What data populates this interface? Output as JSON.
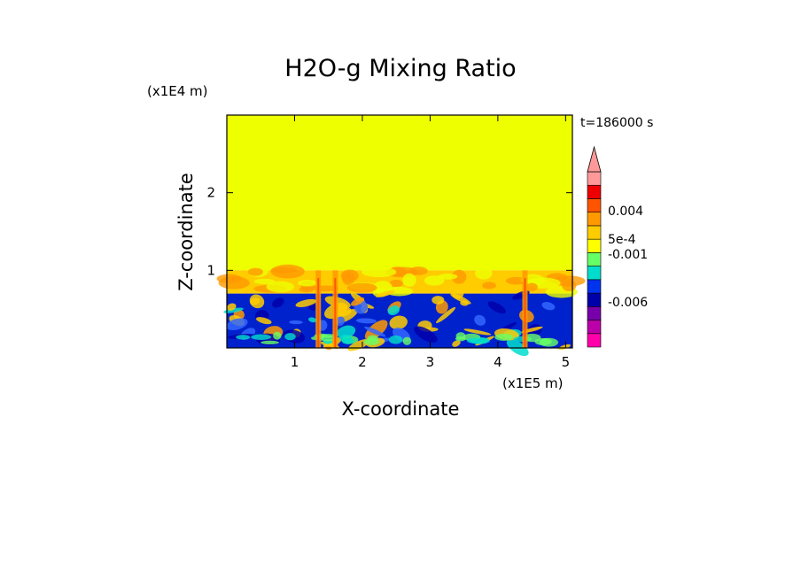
{
  "chart_data": {
    "type": "heatmap",
    "title": "H2O-g Mixing Ratio",
    "xlabel": "X-coordinate",
    "ylabel": "Z-coordinate",
    "x_scale_label": "(x1E5 m)",
    "y_scale_label": "(x1E4 m)",
    "time_label": "t=186000 s",
    "xlim": [
      0,
      5.1
    ],
    "ylim": [
      0,
      3.0
    ],
    "x_ticks": [
      1,
      2,
      3,
      4,
      5
    ],
    "y_ticks": [
      1,
      2
    ],
    "layers": [
      {
        "name": "upper",
        "z_range": [
          1.0,
          3.0
        ],
        "color": "#eeff00"
      },
      {
        "name": "transition",
        "z_range": [
          0.7,
          1.0
        ],
        "color": "#ffcc00"
      },
      {
        "name": "lower-turbulent",
        "z_range": [
          0.0,
          0.7
        ],
        "color": "#0022cc"
      }
    ],
    "plumes_x": [
      1.35,
      1.6,
      4.4
    ],
    "colorbar": {
      "colors": [
        "#ff00aa",
        "#bb00aa",
        "#7700aa",
        "#0000aa",
        "#0033ee",
        "#00ddcc",
        "#66ff66",
        "#ffff00",
        "#ffcc00",
        "#ff9900",
        "#ff5500",
        "#ee0000",
        "#ff9999"
      ],
      "labels": [
        "0.004",
        "5e-4",
        "-0.001",
        "-0.006"
      ],
      "extend": "max"
    }
  }
}
